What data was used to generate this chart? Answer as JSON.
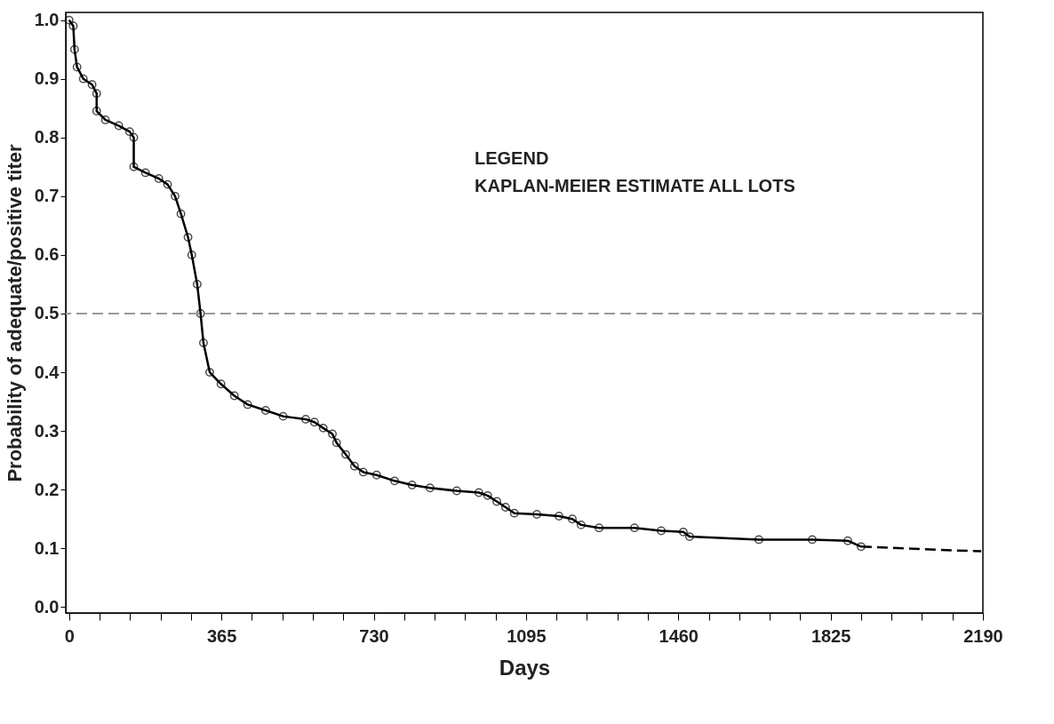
{
  "chart_data": {
    "type": "line",
    "xlabel": "Days",
    "ylabel": "Probability of adequate/positive titer",
    "annotations": [
      "LEGEND",
      "KAPLAN-MEIER ESTIMATE ALL LOTS"
    ],
    "series": [
      {
        "color": "#000000",
        "marker": "circle",
        "line_style": "solid",
        "x": [
          0,
          10,
          13,
          19,
          34,
          55,
          66,
          66,
          87,
          119,
          145,
          155,
          155,
          183,
          215,
          236,
          254,
          268,
          285,
          294,
          307,
          315,
          322,
          337,
          364,
          396,
          428,
          471,
          513,
          567,
          588,
          609,
          631,
          641,
          663,
          684,
          705,
          737,
          780,
          822,
          865,
          929,
          982,
          1003,
          1025,
          1046,
          1067,
          1121,
          1174,
          1206,
          1227,
          1270,
          1355,
          1419,
          1472,
          1487,
          1653,
          1781,
          1866,
          1898
        ],
        "values": [
          1.0,
          0.99,
          0.95,
          0.92,
          0.9,
          0.89,
          0.875,
          0.845,
          0.83,
          0.82,
          0.81,
          0.8,
          0.75,
          0.74,
          0.73,
          0.72,
          0.7,
          0.67,
          0.63,
          0.6,
          0.55,
          0.5,
          0.45,
          0.4,
          0.38,
          0.36,
          0.345,
          0.335,
          0.325,
          0.32,
          0.315,
          0.305,
          0.295,
          0.28,
          0.26,
          0.24,
          0.23,
          0.225,
          0.215,
          0.208,
          0.203,
          0.198,
          0.195,
          0.19,
          0.18,
          0.17,
          0.16,
          0.158,
          0.155,
          0.15,
          0.14,
          0.135,
          0.135,
          0.13,
          0.128,
          0.12,
          0.115,
          0.115,
          0.113,
          0.103
        ]
      },
      {
        "color": "#000000",
        "marker": "none",
        "line_style": "dashed",
        "x": [
          1898,
          2000,
          2100,
          2186
        ],
        "values": [
          0.103,
          0.1,
          0.097,
          0.095
        ]
      }
    ],
    "xlim": [
      -8,
      2190
    ],
    "ylim": [
      -0.01,
      1.013
    ],
    "xticks": [
      0,
      {
        "value": 73,
        "label": null
      },
      {
        "value": 146,
        "label": null
      },
      {
        "value": 219,
        "label": null
      },
      {
        "value": 292,
        "label": null
      },
      365,
      {
        "value": 438,
        "label": null
      },
      {
        "value": 511,
        "label": null
      },
      {
        "value": 584,
        "label": null
      },
      {
        "value": 657,
        "label": null
      },
      730,
      {
        "value": 803,
        "label": null
      },
      {
        "value": 876,
        "label": null
      },
      {
        "value": 949,
        "label": null
      },
      {
        "value": 1022,
        "label": null
      },
      1095,
      {
        "value": 1168,
        "label": null
      },
      {
        "value": 1241,
        "label": null
      },
      {
        "value": 1314,
        "label": null
      },
      {
        "value": 1387,
        "label": null
      },
      1460,
      {
        "value": 1533,
        "label": null
      },
      {
        "value": 1606,
        "label": null
      },
      {
        "value": 1679,
        "label": null
      },
      {
        "value": 1752,
        "label": null
      },
      1825,
      {
        "value": 1898,
        "label": null
      },
      {
        "value": 1971,
        "label": null
      },
      {
        "value": 2044,
        "label": null
      },
      {
        "value": 2117,
        "label": null
      },
      2190
    ],
    "yticks": [
      {
        "value": 0,
        "label": "0.0"
      },
      0.1,
      0.2,
      0.3,
      0.4,
      0.5,
      0.6,
      0.7,
      0.8,
      0.9,
      {
        "value": 1,
        "label": "1.0"
      }
    ],
    "ref_lines": [
      {
        "axis": "y",
        "value": 0.5,
        "color": "#999999",
        "line_style": "dashed"
      }
    ],
    "grid": false
  }
}
